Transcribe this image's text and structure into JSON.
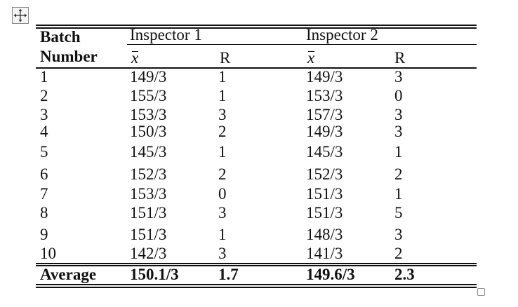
{
  "icons": {
    "move": "move-arrows-icon",
    "resize": "resize-handle-icon"
  },
  "header": {
    "batch_line1": "Batch",
    "batch_line2": "Number",
    "inspector1": "Inspector 1",
    "inspector2": "Inspector 2",
    "xbar": "x",
    "range": "R"
  },
  "rows": [
    {
      "batch": "1",
      "i1_xbar": "149/3",
      "i1_r": "1",
      "i2_xbar": "149/3",
      "i2_r": "3"
    },
    {
      "batch": "2",
      "i1_xbar": "155/3",
      "i1_r": "1",
      "i2_xbar": "153/3",
      "i2_r": "0"
    },
    {
      "batch": "3",
      "i1_xbar": "153/3",
      "i1_r": "3",
      "i2_xbar": "157/3",
      "i2_r": "3"
    },
    {
      "batch": "4",
      "i1_xbar": "150/3",
      "i1_r": "2",
      "i2_xbar": "149/3",
      "i2_r": "3"
    },
    {
      "batch": "5",
      "i1_xbar": "145/3",
      "i1_r": "1",
      "i2_xbar": "145/3",
      "i2_r": "1"
    },
    {
      "batch": "6",
      "i1_xbar": "152/3",
      "i1_r": "2",
      "i2_xbar": "152/3",
      "i2_r": "2"
    },
    {
      "batch": "7",
      "i1_xbar": "153/3",
      "i1_r": "0",
      "i2_xbar": "151/3",
      "i2_r": "1"
    },
    {
      "batch": "8",
      "i1_xbar": "151/3",
      "i1_r": "3",
      "i2_xbar": "151/3",
      "i2_r": "5"
    },
    {
      "batch": "9",
      "i1_xbar": "151/3",
      "i1_r": "1",
      "i2_xbar": "148/3",
      "i2_r": "3"
    },
    {
      "batch": "10",
      "i1_xbar": "142/3",
      "i1_r": "3",
      "i2_xbar": "141/3",
      "i2_r": "2"
    }
  ],
  "average": {
    "label": "Average",
    "i1_xbar": "150.1/3",
    "i1_r": "1.7",
    "i2_xbar": "149.6/3",
    "i2_r": "2.3"
  }
}
